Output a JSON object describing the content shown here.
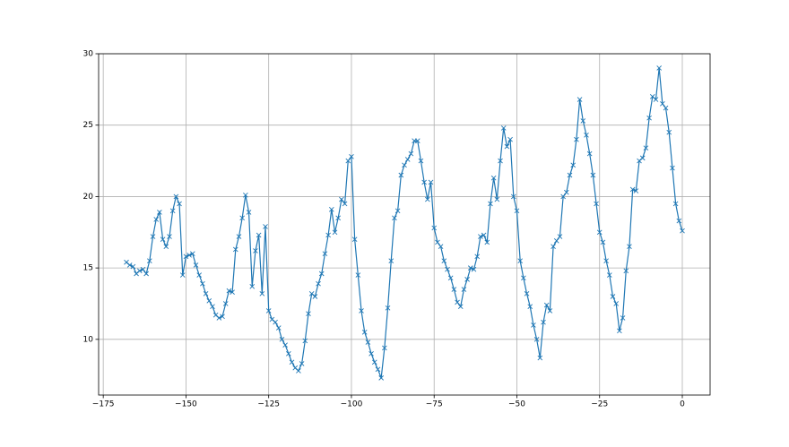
{
  "chart_data": {
    "type": "line",
    "marker": "x",
    "color": "#1f77b4",
    "grid": true,
    "xlim": [
      -176.4,
      8.4
    ],
    "ylim": [
      6.1,
      30
    ],
    "xticks": [
      {
        "value": -175,
        "label": "−175"
      },
      {
        "value": -150,
        "label": "−150"
      },
      {
        "value": -125,
        "label": "−125"
      },
      {
        "value": -100,
        "label": "−100"
      },
      {
        "value": -75,
        "label": "−75"
      },
      {
        "value": -50,
        "label": "−50"
      },
      {
        "value": -25,
        "label": "−25"
      },
      0
    ],
    "yticks": [
      10,
      15,
      20,
      25,
      30
    ],
    "x": [
      -168,
      -167,
      -166,
      -165,
      -164,
      -163,
      -162,
      -161,
      -160,
      -159,
      -158,
      -157,
      -156,
      -155,
      -154,
      -153,
      -152,
      -151,
      -150,
      -149,
      -148,
      -147,
      -146,
      -145,
      -144,
      -143,
      -142,
      -141,
      -140,
      -139,
      -138,
      -137,
      -136,
      -135,
      -134,
      -133,
      -132,
      -131,
      -130,
      -129,
      -128,
      -127,
      -126,
      -125,
      -124,
      -123,
      -122,
      -121,
      -120,
      -119,
      -118,
      -117,
      -116,
      -115,
      -114,
      -113,
      -112,
      -111,
      -110,
      -109,
      -108,
      -107,
      -106,
      -105,
      -104,
      -103,
      -102,
      -101,
      -100,
      -99,
      -98,
      -97,
      -96,
      -95,
      -94,
      -93,
      -92,
      -91,
      -90,
      -89,
      -88,
      -87,
      -86,
      -85,
      -84,
      -83,
      -82,
      -81,
      -80,
      -79,
      -78,
      -77,
      -76,
      -75,
      -74,
      -73,
      -72,
      -71,
      -70,
      -69,
      -68,
      -67,
      -66,
      -65,
      -64,
      -63,
      -62,
      -61,
      -60,
      -59,
      -58,
      -57,
      -56,
      -55,
      -54,
      -53,
      -52,
      -51,
      -50,
      -49,
      -48,
      -47,
      -46,
      -45,
      -44,
      -43,
      -42,
      -41,
      -40,
      -39,
      -38,
      -37,
      -36,
      -35,
      -34,
      -33,
      -32,
      -31,
      -30,
      -29,
      -28,
      -27,
      -26,
      -25,
      -24,
      -23,
      -22,
      -21,
      -20,
      -19,
      -18,
      -17,
      -16,
      -15,
      -14,
      -13,
      -12,
      -11,
      -10,
      -9,
      -8,
      -7,
      -6,
      -5,
      -4,
      -3,
      -2,
      -1,
      0
    ],
    "values": [
      15.4,
      15.2,
      15.1,
      14.6,
      14.8,
      14.9,
      14.6,
      15.5,
      17.2,
      18.4,
      18.9,
      17.0,
      16.5,
      17.2,
      19.0,
      20.0,
      19.5,
      14.5,
      15.8,
      15.9,
      16.0,
      15.2,
      14.5,
      13.9,
      13.2,
      12.7,
      12.3,
      11.7,
      11.5,
      11.6,
      12.5,
      13.4,
      13.3,
      16.3,
      17.2,
      18.5,
      20.1,
      18.9,
      13.7,
      16.2,
      17.3,
      13.2,
      17.9,
      12.0,
      11.4,
      11.2,
      10.8,
      10.0,
      9.6,
      9.0,
      8.4,
      8.0,
      7.8,
      8.3,
      9.9,
      11.8,
      13.2,
      13.0,
      13.9,
      14.6,
      16.0,
      17.3,
      19.1,
      17.5,
      18.5,
      19.8,
      19.5,
      22.5,
      22.8,
      17.0,
      14.5,
      12.0,
      10.5,
      9.8,
      9.0,
      8.4,
      7.9,
      7.3,
      9.4,
      12.2,
      15.5,
      18.5,
      19.0,
      21.5,
      22.2,
      22.6,
      23.0,
      23.9,
      23.9,
      22.5,
      21.0,
      19.8,
      21.0,
      17.8,
      16.8,
      16.5,
      15.5,
      14.9,
      14.3,
      13.5,
      12.6,
      12.3,
      13.5,
      14.2,
      15.0,
      14.9,
      15.8,
      17.2,
      17.3,
      16.8,
      19.5,
      21.3,
      19.8,
      22.5,
      24.8,
      23.5,
      24.0,
      20.0,
      19.0,
      15.5,
      14.3,
      13.2,
      12.3,
      11.0,
      10.0,
      8.7,
      11.2,
      12.4,
      12.0,
      16.5,
      16.9,
      17.2,
      20.0,
      20.3,
      21.5,
      22.2,
      24.0,
      26.8,
      25.3,
      24.3,
      23.0,
      21.5,
      19.5,
      17.5,
      16.8,
      15.5,
      14.5,
      13.0,
      12.5,
      10.6,
      11.5,
      14.8,
      16.5,
      20.5,
      20.4,
      22.5,
      22.7,
      23.4,
      25.5,
      27.0,
      26.8,
      29.0,
      26.5,
      26.2,
      24.5,
      22.0,
      19.5,
      18.3,
      17.6
    ]
  }
}
